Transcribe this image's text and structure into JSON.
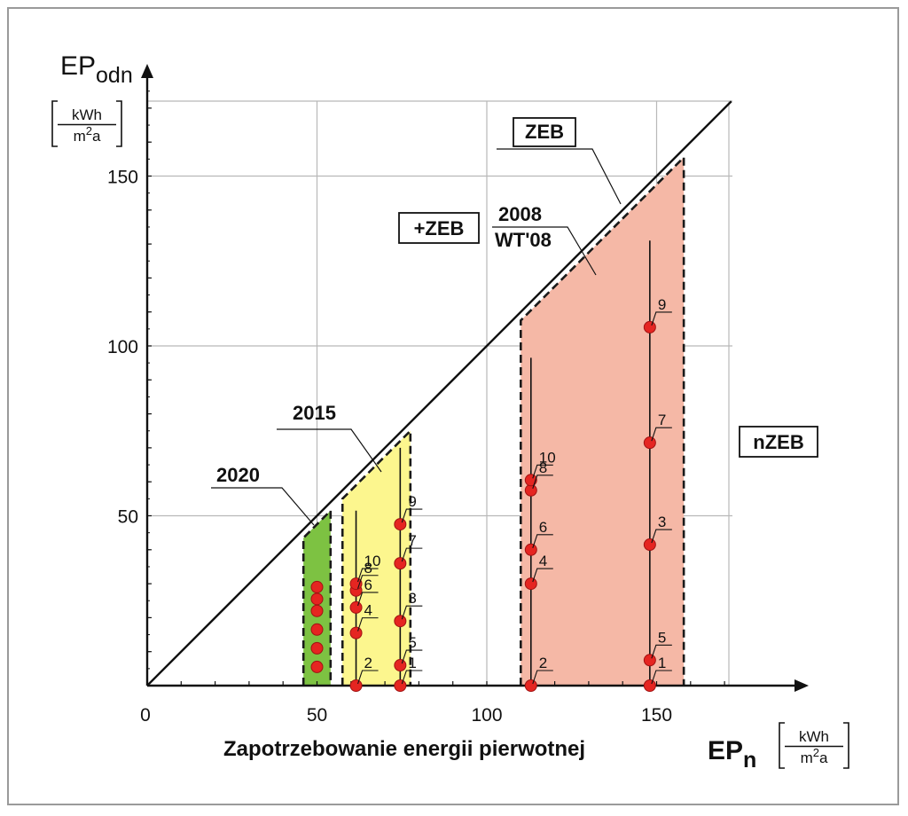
{
  "chart_data": {
    "type": "scatter",
    "title": "",
    "xlabel": "Zapotrzebowanie energii pierwotnej",
    "x_axis_symbol": {
      "main": "EP",
      "sub": "n"
    },
    "y_axis_symbol": {
      "main": "EP",
      "sub": "odn"
    },
    "unit": {
      "num": "kWh",
      "den_main": "m",
      "den_sup": "2",
      "den_tail": "a"
    },
    "xlim": [
      0,
      180
    ],
    "ylim": [
      0,
      175
    ],
    "x_ticks": [
      0,
      50,
      100,
      150
    ],
    "y_ticks": [
      50,
      100,
      150
    ],
    "grid": true,
    "diagonal_label": "ZEB",
    "region_labels": {
      "above": "+ZEB",
      "right": "nZEB"
    },
    "bands": [
      {
        "name": "2020",
        "x_from": 46,
        "x_to": 54,
        "color": "#7dc242"
      },
      {
        "name": "2015",
        "x_from": 57.5,
        "x_to": 77.5,
        "color": "#fcf68e"
      },
      {
        "name": "2008",
        "name2": "WT'08",
        "x_from": 110,
        "x_to": 158,
        "color": "#f5b8a6"
      }
    ],
    "series": [
      {
        "x": 50,
        "points": [
          {
            "y": 5.5
          },
          {
            "y": 11
          },
          {
            "y": 16.5
          },
          {
            "y": 22
          },
          {
            "y": 25.5
          },
          {
            "y": 29
          }
        ]
      },
      {
        "x": 61.5,
        "stem_top": 51.5,
        "points": [
          {
            "y": 0,
            "label": "2"
          },
          {
            "y": 15.5,
            "label": "4"
          },
          {
            "y": 23,
            "label": "6"
          },
          {
            "y": 28,
            "label": "8"
          },
          {
            "y": 30,
            "label": "10"
          }
        ]
      },
      {
        "x": 74.5,
        "stem_top": 70,
        "points": [
          {
            "y": 0,
            "label": "1"
          },
          {
            "y": 6,
            "label": "5"
          },
          {
            "y": 19,
            "label": "3"
          },
          {
            "y": 36,
            "label": "7"
          },
          {
            "y": 47.5,
            "label": "9"
          }
        ]
      },
      {
        "x": 113,
        "stem_top": 96.5,
        "points": [
          {
            "y": 0,
            "label": "2"
          },
          {
            "y": 30,
            "label": "4"
          },
          {
            "y": 40,
            "label": "6"
          },
          {
            "y": 57.5,
            "label": "8"
          },
          {
            "y": 60.5,
            "label": "10"
          }
        ]
      },
      {
        "x": 148,
        "stem_top": 131,
        "points": [
          {
            "y": 0,
            "label": "1"
          },
          {
            "y": 7.5,
            "label": "5"
          },
          {
            "y": 41.5,
            "label": "3"
          },
          {
            "y": 71.5,
            "label": "7"
          },
          {
            "y": 105.5,
            "label": "9"
          }
        ]
      }
    ]
  }
}
